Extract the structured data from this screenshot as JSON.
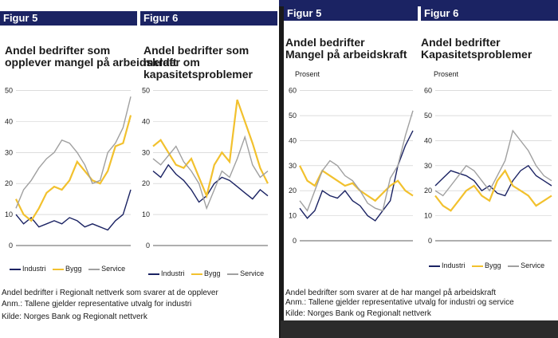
{
  "colors": {
    "header": "#1b2363",
    "yellow": "#f2c12e",
    "navy": "#1b2363",
    "grey": "#a0a0a0"
  },
  "left": {
    "header": "Figur 5",
    "header2": "Figur 6",
    "chart1": {
      "title_line1": "Andel bedrifter som",
      "title_line2": "opplever mangel på arbeidskraft",
      "ylabel": "",
      "yticks": [
        "0",
        "10",
        "20",
        "30",
        "40",
        "50"
      ]
    },
    "chart2": {
      "title_line1": "Andel bedrifter som",
      "title_line2": "melder om kapasitetsproblemer",
      "ylabel": "",
      "yticks": [
        "0",
        "10",
        "20",
        "30",
        "40",
        "50"
      ]
    },
    "legend": [
      "Industri",
      "Bygg",
      "Service",
      "Industri",
      "Bygg",
      "Service"
    ],
    "notes": [
      "Andel bedrifter i Regionalt nettverk som svarer at de opplever",
      "Anm.: Tallene gjelder representative utvalg for industri",
      "Kilde: Norges Bank og Regionalt nettverk"
    ]
  },
  "right": {
    "header": "Figur 5",
    "header2": "Figur 6",
    "chart1": {
      "title_line1": "Andel bedrifter",
      "title_line2": "Mangel på arbeidskraft",
      "ylabel": "Prosent",
      "yticks": [
        "0",
        "10",
        "20",
        "30",
        "40",
        "50",
        "60"
      ]
    },
    "chart2": {
      "title_line1": "Andel bedrifter",
      "title_line2": "Kapasitetsproblemer",
      "ylabel": "Prosent",
      "yticks": [
        "0",
        "10",
        "20",
        "30",
        "40",
        "50",
        "60"
      ]
    },
    "legend": [
      "Industri",
      "Bygg",
      "Service"
    ],
    "notes": [
      "Andel bedrifter som svarer at de har mangel på arbeidskraft",
      "Anm.: Tallene gjelder representative utvalg for industri og service",
      "Kilde: Norges Bank og Regionalt nettverk"
    ]
  },
  "chart_data": [
    {
      "type": "line",
      "ylim": [
        0,
        55
      ],
      "series": [
        {
          "name": "Industri",
          "values": [
            10,
            7,
            9,
            6,
            7,
            8,
            7,
            9,
            8,
            6,
            7,
            6,
            5,
            8,
            10,
            18
          ]
        },
        {
          "name": "Bygg",
          "values": [
            15,
            10,
            8,
            12,
            17,
            19,
            18,
            21,
            27,
            24,
            21,
            20,
            24,
            32,
            33,
            42
          ]
        },
        {
          "name": "Service",
          "values": [
            12,
            18,
            21,
            25,
            28,
            30,
            34,
            33,
            30,
            26,
            20,
            21,
            30,
            33,
            38,
            48
          ]
        }
      ]
    },
    {
      "type": "line",
      "ylim": [
        0,
        55
      ],
      "series": [
        {
          "name": "Industri",
          "values": [
            24,
            22,
            26,
            23,
            21,
            18,
            14,
            16,
            20,
            22,
            21,
            19,
            17,
            15,
            18,
            16
          ]
        },
        {
          "name": "Bygg",
          "values": [
            32,
            34,
            30,
            26,
            25,
            28,
            22,
            16,
            26,
            30,
            27,
            47,
            40,
            33,
            25,
            20
          ]
        },
        {
          "name": "Service",
          "values": [
            28,
            26,
            29,
            32,
            27,
            24,
            20,
            12,
            18,
            24,
            22,
            28,
            35,
            26,
            22,
            24
          ]
        }
      ]
    },
    {
      "type": "line",
      "ylim": [
        0,
        65
      ],
      "series": [
        {
          "name": "Industri",
          "values": [
            13,
            9,
            12,
            20,
            18,
            17,
            20,
            16,
            14,
            10,
            8,
            12,
            16,
            30,
            38,
            44
          ]
        },
        {
          "name": "Bygg",
          "values": [
            30,
            24,
            22,
            28,
            26,
            24,
            22,
            23,
            20,
            18,
            16,
            19,
            22,
            24,
            20,
            18
          ]
        },
        {
          "name": "Service",
          "values": [
            16,
            12,
            20,
            28,
            32,
            30,
            26,
            24,
            20,
            15,
            13,
            12,
            25,
            30,
            42,
            52
          ]
        }
      ]
    },
    {
      "type": "line",
      "ylim": [
        0,
        65
      ],
      "series": [
        {
          "name": "Industri",
          "values": [
            22,
            25,
            28,
            27,
            26,
            24,
            20,
            22,
            19,
            18,
            24,
            28,
            30,
            26,
            24,
            22
          ]
        },
        {
          "name": "Bygg",
          "values": [
            18,
            14,
            12,
            16,
            20,
            22,
            18,
            16,
            24,
            28,
            22,
            20,
            18,
            14,
            16,
            18
          ]
        },
        {
          "name": "Service",
          "values": [
            20,
            18,
            22,
            26,
            30,
            28,
            24,
            20,
            26,
            32,
            44,
            40,
            36,
            30,
            26,
            24
          ]
        }
      ]
    }
  ]
}
